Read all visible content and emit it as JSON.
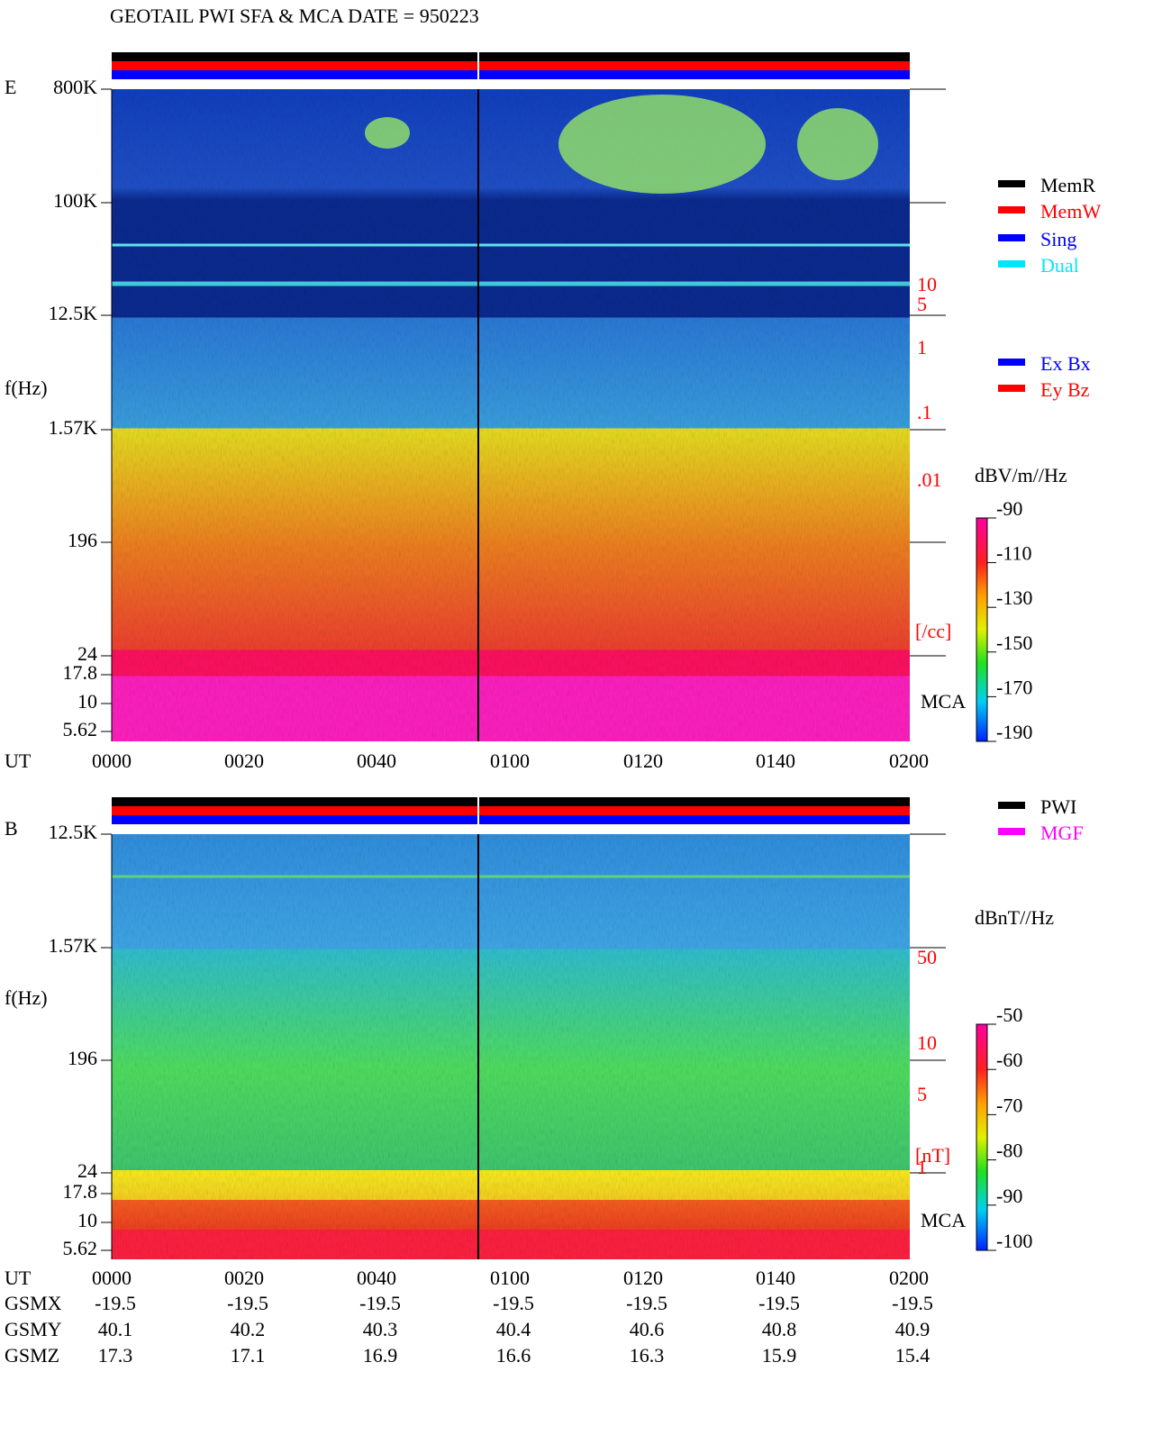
{
  "title": "GEOTAIL   PWI SFA & MCA   DATE = 950223",
  "panels": [
    {
      "label": "E",
      "y_label": "f(Hz)",
      "y_ticks": [
        "800K",
        "100K",
        "12.5K",
        "1.57K",
        "196",
        "24",
        "17.8",
        "10",
        "5.62"
      ],
      "density_ticks": [
        "10",
        "5",
        "1",
        ".1",
        ".01"
      ],
      "density_unit": "[/cc]",
      "mca_label": "MCA",
      "legend": [
        {
          "name": "MemR",
          "color": "#000000"
        },
        {
          "name": "MemW",
          "color": "#ff0000"
        },
        {
          "name": "Sing",
          "color": "#0000ff"
        },
        {
          "name": "Dual",
          "color": "#00e5ff"
        }
      ],
      "legend2": [
        {
          "name": "Ex Bx",
          "color": "#0000ff"
        },
        {
          "name": "Ey Bz",
          "color": "#ff0000"
        }
      ],
      "colorbar": {
        "unit": "dBV/m//Hz",
        "lim": [
          -190,
          -90
        ],
        "ticks": [
          -90,
          -110,
          -130,
          -150,
          -170,
          -190
        ]
      }
    },
    {
      "label": "B",
      "y_label": "f(Hz)",
      "y_ticks": [
        "12.5K",
        "1.57K",
        "196",
        "24",
        "17.8",
        "10",
        "5.62"
      ],
      "density_ticks": [
        "50",
        "10",
        "5",
        "1"
      ],
      "density_unit": "[nT]",
      "mca_label": "MCA",
      "legend": [
        {
          "name": "PWI",
          "color": "#000000"
        },
        {
          "name": "MGF",
          "color": "#ff00ff"
        }
      ],
      "colorbar": {
        "unit": "dBnT//Hz",
        "lim": [
          -100,
          -50
        ],
        "ticks": [
          -50,
          -60,
          -70,
          -80,
          -90,
          -100
        ]
      }
    }
  ],
  "time_axis": {
    "label": "UT",
    "ticks": [
      "0000",
      "0020",
      "0040",
      "0100",
      "0120",
      "0140",
      "0200"
    ]
  },
  "orbit": {
    "rows": [
      {
        "label": "GSMX",
        "values": [
          -19.5,
          -19.5,
          -19.5,
          -19.5,
          -19.5,
          -19.5,
          -19.5
        ]
      },
      {
        "label": "GSMY",
        "values": [
          40.1,
          40.2,
          40.3,
          40.4,
          40.6,
          40.8,
          40.9
        ]
      },
      {
        "label": "GSMZ",
        "values": [
          17.3,
          17.1,
          16.9,
          16.6,
          16.3,
          15.9,
          15.4
        ]
      }
    ]
  }
}
